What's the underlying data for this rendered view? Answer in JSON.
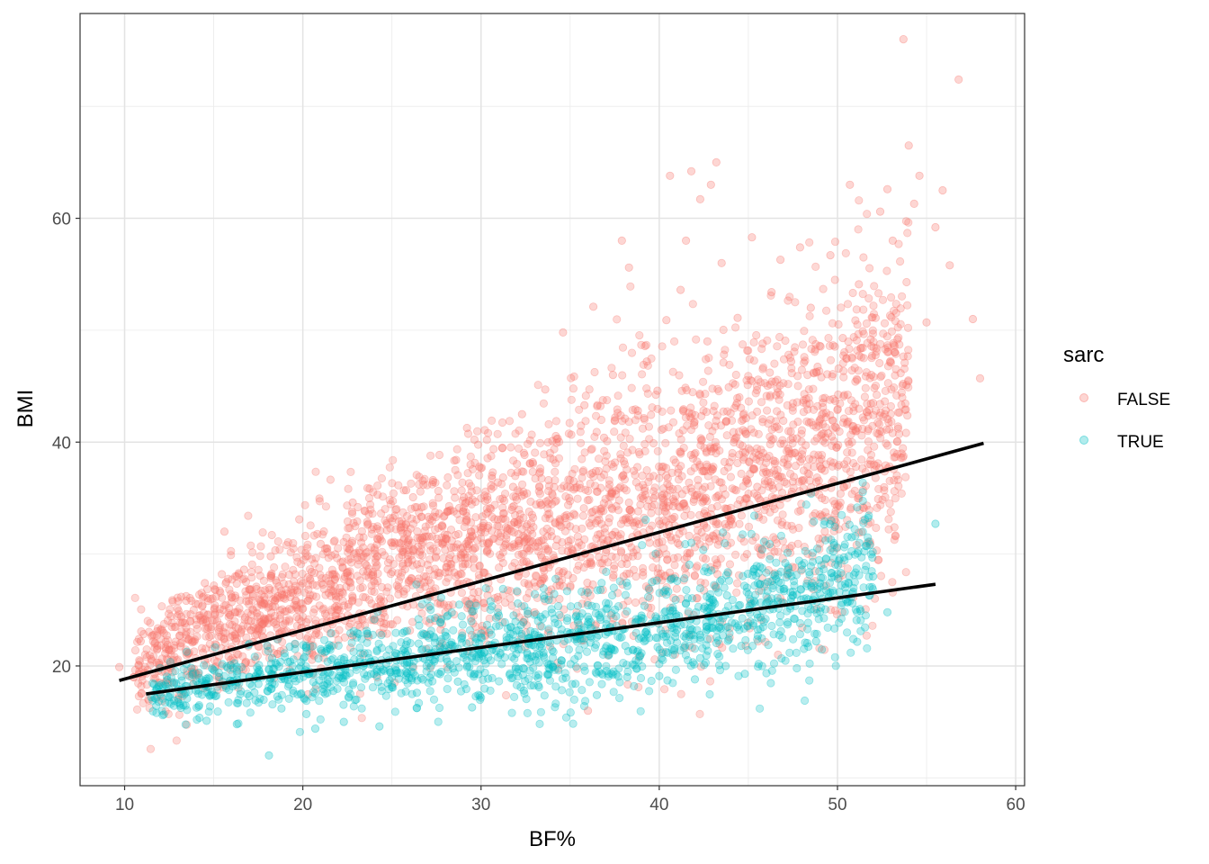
{
  "chart_data": {
    "type": "scatter",
    "title": "",
    "xlabel": "BF%",
    "ylabel": "BMI",
    "xlim": [
      7.5,
      60.5
    ],
    "ylim": [
      9.3,
      78.3
    ],
    "x_ticks": [
      10,
      20,
      30,
      40,
      50,
      60
    ],
    "y_ticks": [
      20,
      40,
      60
    ],
    "grid": true,
    "legend": {
      "title": "sarc",
      "position": "right",
      "entries": [
        {
          "label": "FALSE",
          "color": "#F8766D"
        },
        {
          "label": "TRUE",
          "color": "#00BFC4"
        }
      ]
    },
    "series": [
      {
        "name": "FALSE",
        "color": "#F8766D",
        "alpha": 0.3,
        "points": [
          [
            9.7,
            19.9
          ],
          [
            10.5,
            19.0
          ],
          [
            10.9,
            22.2
          ],
          [
            11.5,
            20.6
          ],
          [
            12.0,
            23.2
          ],
          [
            12.5,
            21.4
          ],
          [
            13.0,
            25.8
          ],
          [
            13.8,
            22.1
          ],
          [
            14.5,
            27.4
          ],
          [
            15.2,
            24.0
          ],
          [
            15.6,
            32.0
          ],
          [
            16.0,
            26.1
          ],
          [
            16.7,
            28.6
          ],
          [
            17.5,
            23.4
          ],
          [
            18.2,
            29.8
          ],
          [
            19.0,
            26.0
          ],
          [
            19.8,
            33.1
          ],
          [
            20.5,
            28.4
          ],
          [
            21.0,
            30.9
          ],
          [
            22.2,
            26.6
          ],
          [
            22.8,
            34.6
          ],
          [
            23.5,
            29.1
          ],
          [
            24.2,
            35.3
          ],
          [
            25.0,
            31.0
          ],
          [
            25.8,
            35.7
          ],
          [
            26.5,
            27.8
          ],
          [
            27.3,
            36.6
          ],
          [
            28.0,
            31.4
          ],
          [
            28.6,
            38.4
          ],
          [
            29.2,
            33.0
          ],
          [
            29.9,
            37.8
          ],
          [
            30.5,
            34.1
          ],
          [
            31.2,
            39.5
          ],
          [
            31.8,
            36.0
          ],
          [
            32.3,
            42.5
          ],
          [
            32.9,
            38.2
          ],
          [
            33.6,
            44.7
          ],
          [
            34.0,
            40.1
          ],
          [
            34.6,
            49.8
          ],
          [
            35.2,
            36.5
          ],
          [
            35.8,
            43.3
          ],
          [
            36.3,
            52.1
          ],
          [
            36.9,
            40.4
          ],
          [
            37.4,
            46.0
          ],
          [
            37.9,
            58.0
          ],
          [
            38.3,
            55.6
          ],
          [
            38.8,
            42.8
          ],
          [
            39.3,
            47.2
          ],
          [
            39.9,
            44.6
          ],
          [
            40.4,
            50.9
          ],
          [
            40.6,
            63.8
          ],
          [
            41.2,
            53.6
          ],
          [
            41.5,
            58.0
          ],
          [
            41.8,
            64.2
          ],
          [
            42.3,
            61.7
          ],
          [
            42.7,
            49.0
          ],
          [
            42.9,
            63.0
          ],
          [
            43.2,
            65.0
          ],
          [
            43.5,
            56.0
          ],
          [
            43.9,
            44.9
          ],
          [
            44.4,
            51.1
          ],
          [
            45.2,
            58.3
          ],
          [
            45.8,
            48.8
          ],
          [
            46.3,
            53.4
          ],
          [
            46.8,
            56.3
          ],
          [
            47.4,
            47.2
          ],
          [
            47.9,
            57.4
          ],
          [
            48.5,
            52.0
          ],
          [
            49.0,
            48.6
          ],
          [
            49.6,
            56.7
          ],
          [
            50.3,
            49.3
          ],
          [
            50.7,
            63.0
          ],
          [
            51.2,
            54.1
          ],
          [
            51.9,
            46.0
          ],
          [
            52.4,
            60.6
          ],
          [
            52.8,
            62.6
          ],
          [
            53.1,
            58.0
          ],
          [
            53.7,
            76.0
          ],
          [
            54.0,
            66.5
          ],
          [
            54.3,
            61.3
          ],
          [
            54.6,
            63.8
          ],
          [
            55.0,
            50.7
          ],
          [
            55.5,
            59.2
          ],
          [
            55.9,
            62.5
          ],
          [
            56.3,
            55.8
          ],
          [
            56.8,
            72.4
          ],
          [
            57.6,
            51.0
          ],
          [
            58.0,
            45.7
          ],
          [
            36.0,
            16.0
          ],
          [
            33.0,
            24.8
          ],
          [
            38.0,
            28.0
          ],
          [
            44.0,
            33.0
          ],
          [
            48.0,
            38.5
          ],
          [
            52.0,
            43.5
          ],
          [
            45.5,
            36.0
          ],
          [
            40.0,
            30.0
          ]
        ]
      },
      {
        "name": "TRUE",
        "color": "#00BFC4",
        "alpha": 0.3,
        "points": [
          [
            11.5,
            17.2
          ],
          [
            12.0,
            17.5
          ],
          [
            13.0,
            17.0
          ],
          [
            14.0,
            17.8
          ],
          [
            14.6,
            15.1
          ],
          [
            15.5,
            18.6
          ],
          [
            16.3,
            14.8
          ],
          [
            17.0,
            17.3
          ],
          [
            17.6,
            19.3
          ],
          [
            18.1,
            12.0
          ],
          [
            18.8,
            16.2
          ],
          [
            19.5,
            18.9
          ],
          [
            20.2,
            15.7
          ],
          [
            20.7,
            14.4
          ],
          [
            21.5,
            19.4
          ],
          [
            22.3,
            15.0
          ],
          [
            23.0,
            17.0
          ],
          [
            23.8,
            20.4
          ],
          [
            24.3,
            14.6
          ],
          [
            25.0,
            18.1
          ],
          [
            25.7,
            21.5
          ],
          [
            26.4,
            17.6
          ],
          [
            27.2,
            20.0
          ],
          [
            28.0,
            22.7
          ],
          [
            28.7,
            18.6
          ],
          [
            29.5,
            16.3
          ],
          [
            30.2,
            21.2
          ],
          [
            31.0,
            24.5
          ],
          [
            31.6,
            19.2
          ],
          [
            32.4,
            17.8
          ],
          [
            33.0,
            22.8
          ],
          [
            33.8,
            25.9
          ],
          [
            34.5,
            20.5
          ],
          [
            35.3,
            18.4
          ],
          [
            36.0,
            23.7
          ],
          [
            36.7,
            26.8
          ],
          [
            37.5,
            21.4
          ],
          [
            38.2,
            19.0
          ],
          [
            39.0,
            24.5
          ],
          [
            39.6,
            27.5
          ],
          [
            40.0,
            19.1
          ],
          [
            40.9,
            22.6
          ],
          [
            41.5,
            25.6
          ],
          [
            42.3,
            20.7
          ],
          [
            43.0,
            23.4
          ],
          [
            43.8,
            26.3
          ],
          [
            44.6,
            21.8
          ],
          [
            44.8,
            19.3
          ],
          [
            45.5,
            24.6
          ],
          [
            46.4,
            27.2
          ],
          [
            47.2,
            23.7
          ],
          [
            48.0,
            29.0
          ],
          [
            48.8,
            22.2
          ],
          [
            49.5,
            26.1
          ],
          [
            50.2,
            28.3
          ],
          [
            50.8,
            31.5
          ],
          [
            51.3,
            24.9
          ],
          [
            52.0,
            28.0
          ],
          [
            52.8,
            24.8
          ],
          [
            55.5,
            32.7
          ],
          [
            47.0,
            25.6
          ],
          [
            42.0,
            18.8
          ],
          [
            36.5,
            17.4
          ],
          [
            26.5,
            22.0
          ],
          [
            21.0,
            21.5
          ]
        ]
      }
    ],
    "density_clouds": [
      {
        "series": "FALSE",
        "cloud": [
          [
            10.5,
            20.0
          ],
          [
            18.0,
            25.0
          ],
          [
            26.0,
            29.5
          ],
          [
            34.0,
            32.5
          ],
          [
            42.0,
            35.5
          ],
          [
            50.0,
            40.0
          ],
          [
            54.0,
            44.0
          ]
        ]
      },
      {
        "series": "TRUE",
        "cloud": [
          [
            11.5,
            17.5
          ],
          [
            20.0,
            19.5
          ],
          [
            28.0,
            20.8
          ],
          [
            36.0,
            21.8
          ],
          [
            44.0,
            24.5
          ],
          [
            50.0,
            27.5
          ],
          [
            52.0,
            29.5
          ]
        ]
      }
    ],
    "trend_lines": [
      {
        "series": "FALSE",
        "color": "#000000",
        "x": [
          9.7,
          58.2
        ],
        "y": [
          18.7,
          39.9
        ]
      },
      {
        "series": "TRUE",
        "color": "#000000",
        "x": [
          11.2,
          55.5
        ],
        "y": [
          17.5,
          27.3
        ]
      }
    ]
  }
}
